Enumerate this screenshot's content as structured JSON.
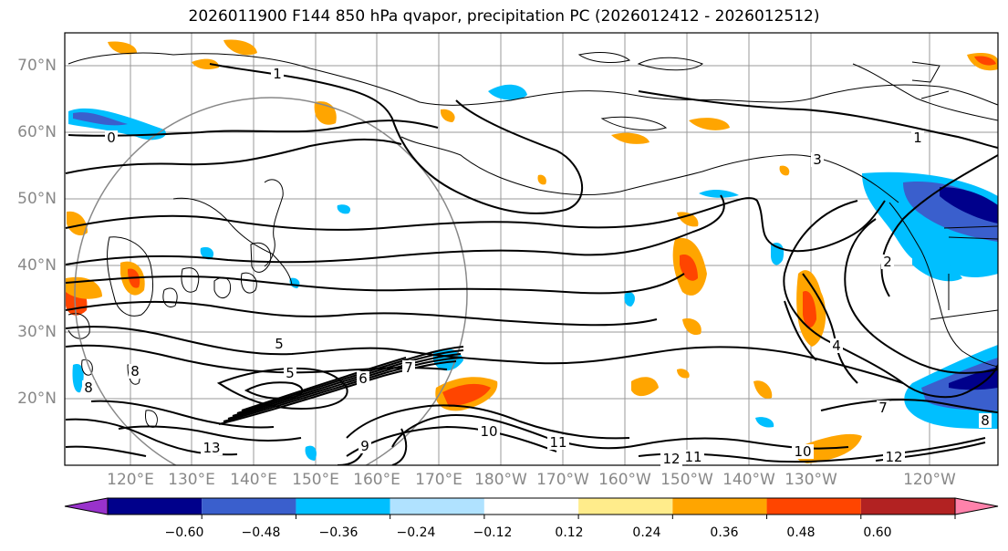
{
  "title": "2026011900 F144 850 hPa qvapor, precipitation PC (2026012412 - 2026012512)",
  "lat_labels": [
    "70°N",
    "60°N",
    "50°N",
    "40°N",
    "30°N",
    "20°N"
  ],
  "lon_labels": [
    "120°E",
    "130°E",
    "140°E",
    "150°E",
    "160°E",
    "170°E",
    "180°W",
    "170°W",
    "160°W",
    "150°W",
    "140°W",
    "130°W",
    "120°W"
  ],
  "colorbar": {
    "ticks": [
      "−0.60",
      "−0.48",
      "−0.36",
      "−0.24",
      "−0.12",
      "0.12",
      "0.24",
      "0.36",
      "0.48",
      "0.60"
    ],
    "colors": [
      "#9932cc",
      "#00008b",
      "#3a5fcd",
      "#00bfff",
      "#b0e2ff",
      "#ffffff",
      "#ffec8b",
      "#ffa500",
      "#ff4500",
      "#b22222",
      "#ff82ab"
    ]
  },
  "contour_labels": [
    {
      "text": "0"
    },
    {
      "text": "1"
    },
    {
      "text": "1"
    },
    {
      "text": "3"
    },
    {
      "text": "2"
    },
    {
      "text": "4"
    },
    {
      "text": "5"
    },
    {
      "text": "5"
    },
    {
      "text": "6"
    },
    {
      "text": "7"
    },
    {
      "text": "8"
    },
    {
      "text": "8"
    },
    {
      "text": "9"
    },
    {
      "text": "10"
    },
    {
      "text": "10"
    },
    {
      "text": "11"
    },
    {
      "text": "11"
    },
    {
      "text": "12"
    },
    {
      "text": "12"
    },
    {
      "text": "13"
    },
    {
      "text": "7"
    },
    {
      "text": "8"
    }
  ]
}
